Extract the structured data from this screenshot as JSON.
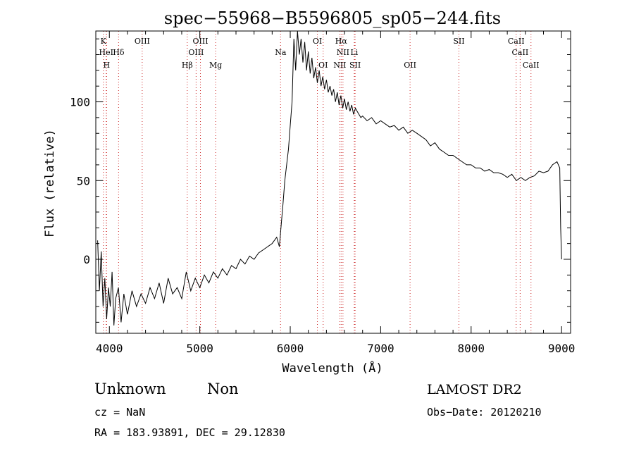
{
  "chart_data": {
    "type": "line",
    "title": "spec−55968−B5596805_sp05−244.fits",
    "xlabel": "Wavelength (Å)",
    "ylabel": "Flux (relative)",
    "xlim": [
      3850,
      9100
    ],
    "ylim": [
      -47,
      145
    ],
    "x_ticks": [
      4000,
      5000,
      6000,
      7000,
      8000,
      9000
    ],
    "y_ticks": [
      0,
      50,
      100
    ],
    "spectrum": {
      "x": [
        3870,
        3890,
        3910,
        3930,
        3950,
        3970,
        3990,
        4010,
        4030,
        4050,
        4070,
        4100,
        4130,
        4160,
        4200,
        4250,
        4300,
        4350,
        4400,
        4450,
        4500,
        4550,
        4600,
        4650,
        4700,
        4750,
        4800,
        4850,
        4900,
        4950,
        5000,
        5050,
        5100,
        5150,
        5200,
        5250,
        5300,
        5350,
        5400,
        5450,
        5500,
        5550,
        5600,
        5650,
        5700,
        5750,
        5800,
        5850,
        5880,
        5900,
        5920,
        5940,
        5960,
        5980,
        6000,
        6020,
        6040,
        6060,
        6080,
        6100,
        6120,
        6140,
        6160,
        6180,
        6200,
        6220,
        6240,
        6260,
        6280,
        6300,
        6320,
        6340,
        6360,
        6380,
        6400,
        6420,
        6440,
        6460,
        6480,
        6500,
        6520,
        6540,
        6560,
        6580,
        6600,
        6620,
        6640,
        6660,
        6680,
        6700,
        6720,
        6740,
        6760,
        6780,
        6800,
        6850,
        6900,
        6950,
        7000,
        7050,
        7100,
        7150,
        7200,
        7250,
        7300,
        7350,
        7400,
        7450,
        7500,
        7550,
        7600,
        7650,
        7700,
        7750,
        7800,
        7850,
        7900,
        7950,
        8000,
        8050,
        8100,
        8150,
        8200,
        8250,
        8300,
        8350,
        8400,
        8450,
        8500,
        8550,
        8600,
        8650,
        8700,
        8750,
        8800,
        8850,
        8900,
        8950,
        8980,
        8990,
        9000
      ],
      "y": [
        12,
        -20,
        5,
        -30,
        -12,
        -38,
        -18,
        -30,
        -8,
        -42,
        -25,
        -18,
        -40,
        -22,
        -35,
        -20,
        -30,
        -22,
        -28,
        -18,
        -25,
        -15,
        -28,
        -12,
        -22,
        -18,
        -25,
        -8,
        -20,
        -12,
        -18,
        -10,
        -15,
        -8,
        -12,
        -6,
        -10,
        -4,
        -6,
        0,
        -3,
        2,
        0,
        4,
        6,
        8,
        10,
        14,
        8,
        22,
        35,
        50,
        60,
        70,
        85,
        100,
        140,
        120,
        145,
        130,
        140,
        125,
        138,
        120,
        132,
        118,
        128,
        115,
        122,
        112,
        120,
        110,
        116,
        108,
        114,
        106,
        110,
        104,
        108,
        100,
        106,
        98,
        104,
        96,
        102,
        95,
        100,
        94,
        98,
        92,
        96,
        94,
        92,
        90,
        91,
        88,
        90,
        86,
        88,
        86,
        84,
        85,
        82,
        84,
        80,
        82,
        80,
        78,
        76,
        72,
        74,
        70,
        68,
        66,
        66,
        64,
        62,
        60,
        60,
        58,
        58,
        56,
        57,
        55,
        55,
        54,
        52,
        54,
        50,
        52,
        50,
        52,
        53,
        56,
        55,
        56,
        60,
        62,
        58,
        20,
        0
      ]
    },
    "lines": [
      {
        "name": "K",
        "x": 3934,
        "row": 0
      },
      {
        "name": "HeI",
        "x": 3965,
        "row": 1
      },
      {
        "name": "H",
        "x": 3969,
        "row": 2
      },
      {
        "name": "Hδ",
        "x": 4102,
        "row": 1
      },
      {
        "name": "OIII",
        "x": 4363,
        "row": 0
      },
      {
        "name": "Hβ",
        "x": 4861,
        "row": 2
      },
      {
        "name": "OIII",
        "x": 4959,
        "row": 1
      },
      {
        "name": "OIII",
        "x": 5007,
        "row": 0
      },
      {
        "name": "Mg",
        "x": 5175,
        "row": 2
      },
      {
        "name": "Na",
        "x": 5893,
        "row": 1
      },
      {
        "name": "OI",
        "x": 6300,
        "row": 0
      },
      {
        "name": "OI",
        "x": 6364,
        "row": 2
      },
      {
        "name": "Hα",
        "x": 6563,
        "row": 0
      },
      {
        "name": "NII",
        "x": 6583,
        "row": 1
      },
      {
        "name": "NII",
        "x": 6548,
        "row": 2
      },
      {
        "name": "SII",
        "x": 6717,
        "row": 2
      },
      {
        "name": "Li",
        "x": 6708,
        "row": 1
      },
      {
        "name": "OII",
        "x": 7325,
        "row": 2
      },
      {
        "name": "SII",
        "x": 7865,
        "row": 0
      },
      {
        "name": "CaII",
        "x": 8498,
        "row": 0
      },
      {
        "name": "CaII",
        "x": 8542,
        "row": 1
      },
      {
        "name": "CaII",
        "x": 8662,
        "row": 2
      }
    ],
    "grid": false,
    "legend": "none"
  },
  "info": {
    "class": "Unknown",
    "subclass": "Non",
    "cz": "cz = NaN",
    "coords": "RA = 183.93891, DEC =  29.12830",
    "survey": "LAMOST DR2",
    "obs_date": "Obs−Date: 20120210"
  },
  "colors": {
    "axis": "#000000",
    "spectrum": "#000000",
    "line_marker": "#cc2222"
  }
}
